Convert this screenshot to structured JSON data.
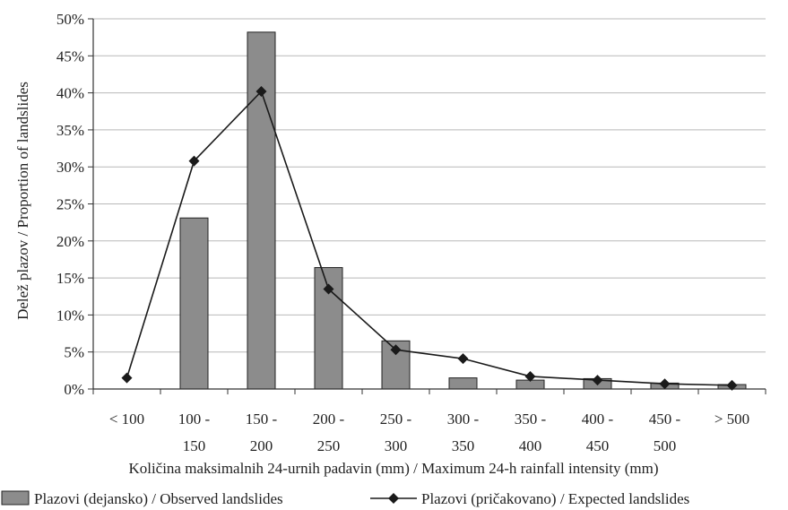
{
  "chart_data": {
    "type": "bar",
    "categories": [
      [
        "< 100",
        ""
      ],
      [
        "100 -",
        "150"
      ],
      [
        "150 -",
        "200"
      ],
      [
        "200 -",
        "250"
      ],
      [
        "250 -",
        "300"
      ],
      [
        "300 -",
        "350"
      ],
      [
        "350 -",
        "400"
      ],
      [
        "400 -",
        "450"
      ],
      [
        "450 -",
        "500"
      ],
      [
        "> 500",
        ""
      ]
    ],
    "series": [
      {
        "name": "Plazovi (dejansko) / Observed landslides",
        "type": "bar",
        "values": [
          0,
          23.1,
          48.2,
          16.4,
          6.5,
          1.5,
          1.2,
          1.4,
          0.8,
          0.6
        ]
      },
      {
        "name": "Plazovi (pričakovano) / Expected landslides",
        "type": "line",
        "marker": "diamond",
        "values": [
          1.5,
          30.8,
          40.2,
          13.5,
          5.3,
          4.1,
          1.7,
          1.2,
          0.7,
          0.5
        ]
      }
    ],
    "xlabel": "Količina maksimalnih 24-urnih padavin (mm) / Maximum 24-h rainfall intensity (mm)",
    "ylabel": "Delež plazov / Proportion of landslides",
    "ylim": [
      0,
      50
    ],
    "yticks": [
      0,
      5,
      10,
      15,
      20,
      25,
      30,
      35,
      40,
      45,
      50
    ],
    "ytick_suffix": "%",
    "grid": true,
    "legend_position": "bottom",
    "colors": {
      "bar_fill": "#8c8c8c",
      "bar_stroke": "#222222",
      "line": "#1a1a1a",
      "grid": "#b8b8b8",
      "axis": "#333333"
    }
  }
}
